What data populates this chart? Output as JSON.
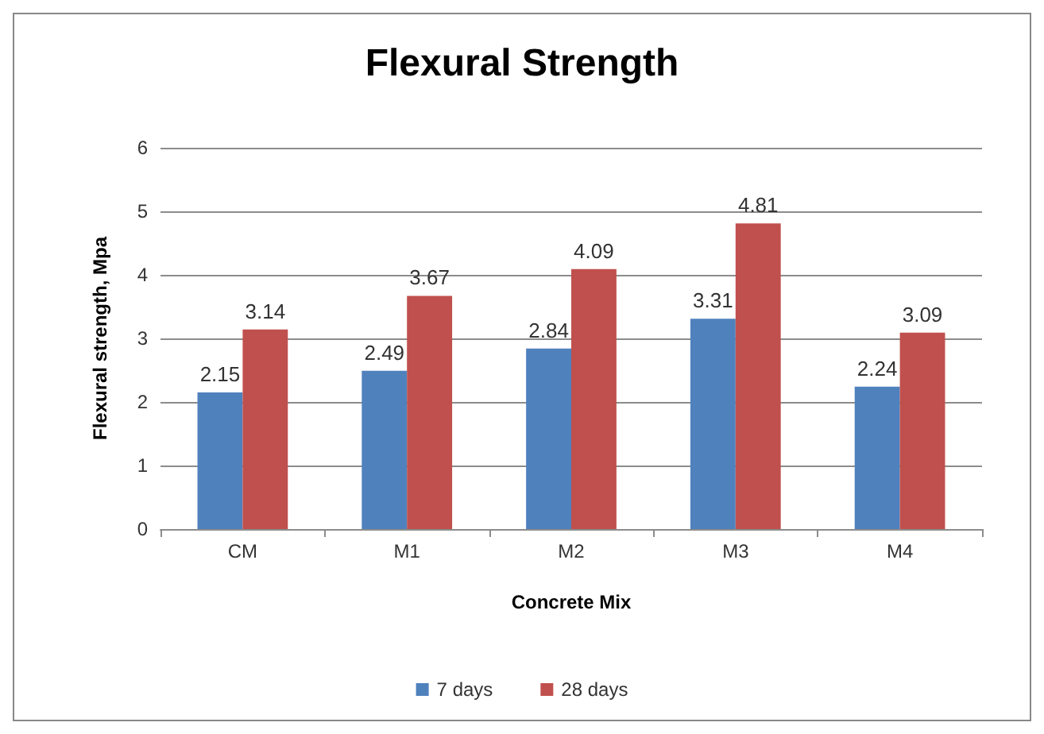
{
  "chart_data": {
    "type": "bar",
    "title": "Flexural Strength",
    "xlabel": "Concrete Mix",
    "ylabel": "Flexural strength, Mpa",
    "categories": [
      "CM",
      "M1",
      "M2",
      "M3",
      "M4"
    ],
    "series": [
      {
        "name": "7 days",
        "color": "#4f81bd",
        "values": [
          2.15,
          2.49,
          2.84,
          3.31,
          2.24
        ]
      },
      {
        "name": "28 days",
        "color": "#c0504d",
        "values": [
          3.14,
          3.67,
          4.09,
          4.81,
          3.09
        ]
      }
    ],
    "ylim": [
      0,
      6
    ],
    "yticks": [
      0,
      1,
      2,
      3,
      4,
      5,
      6
    ],
    "grid": "y",
    "legend": "bottom",
    "data_labels": true
  }
}
